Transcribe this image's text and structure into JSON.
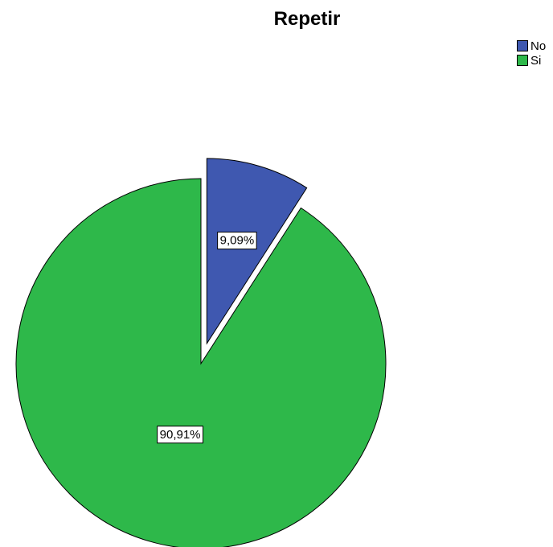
{
  "chart_data": {
    "type": "pie",
    "title": "Repetir",
    "categories": [
      "No",
      "Si"
    ],
    "values": [
      9.09,
      90.91
    ],
    "labels": [
      "9,09%",
      "90,91%"
    ],
    "colors": [
      "#3f58b0",
      "#2eb84a"
    ],
    "exploded": [
      true,
      false
    ],
    "legend": {
      "position": "top-right",
      "entries": [
        "No",
        "Si"
      ]
    }
  }
}
